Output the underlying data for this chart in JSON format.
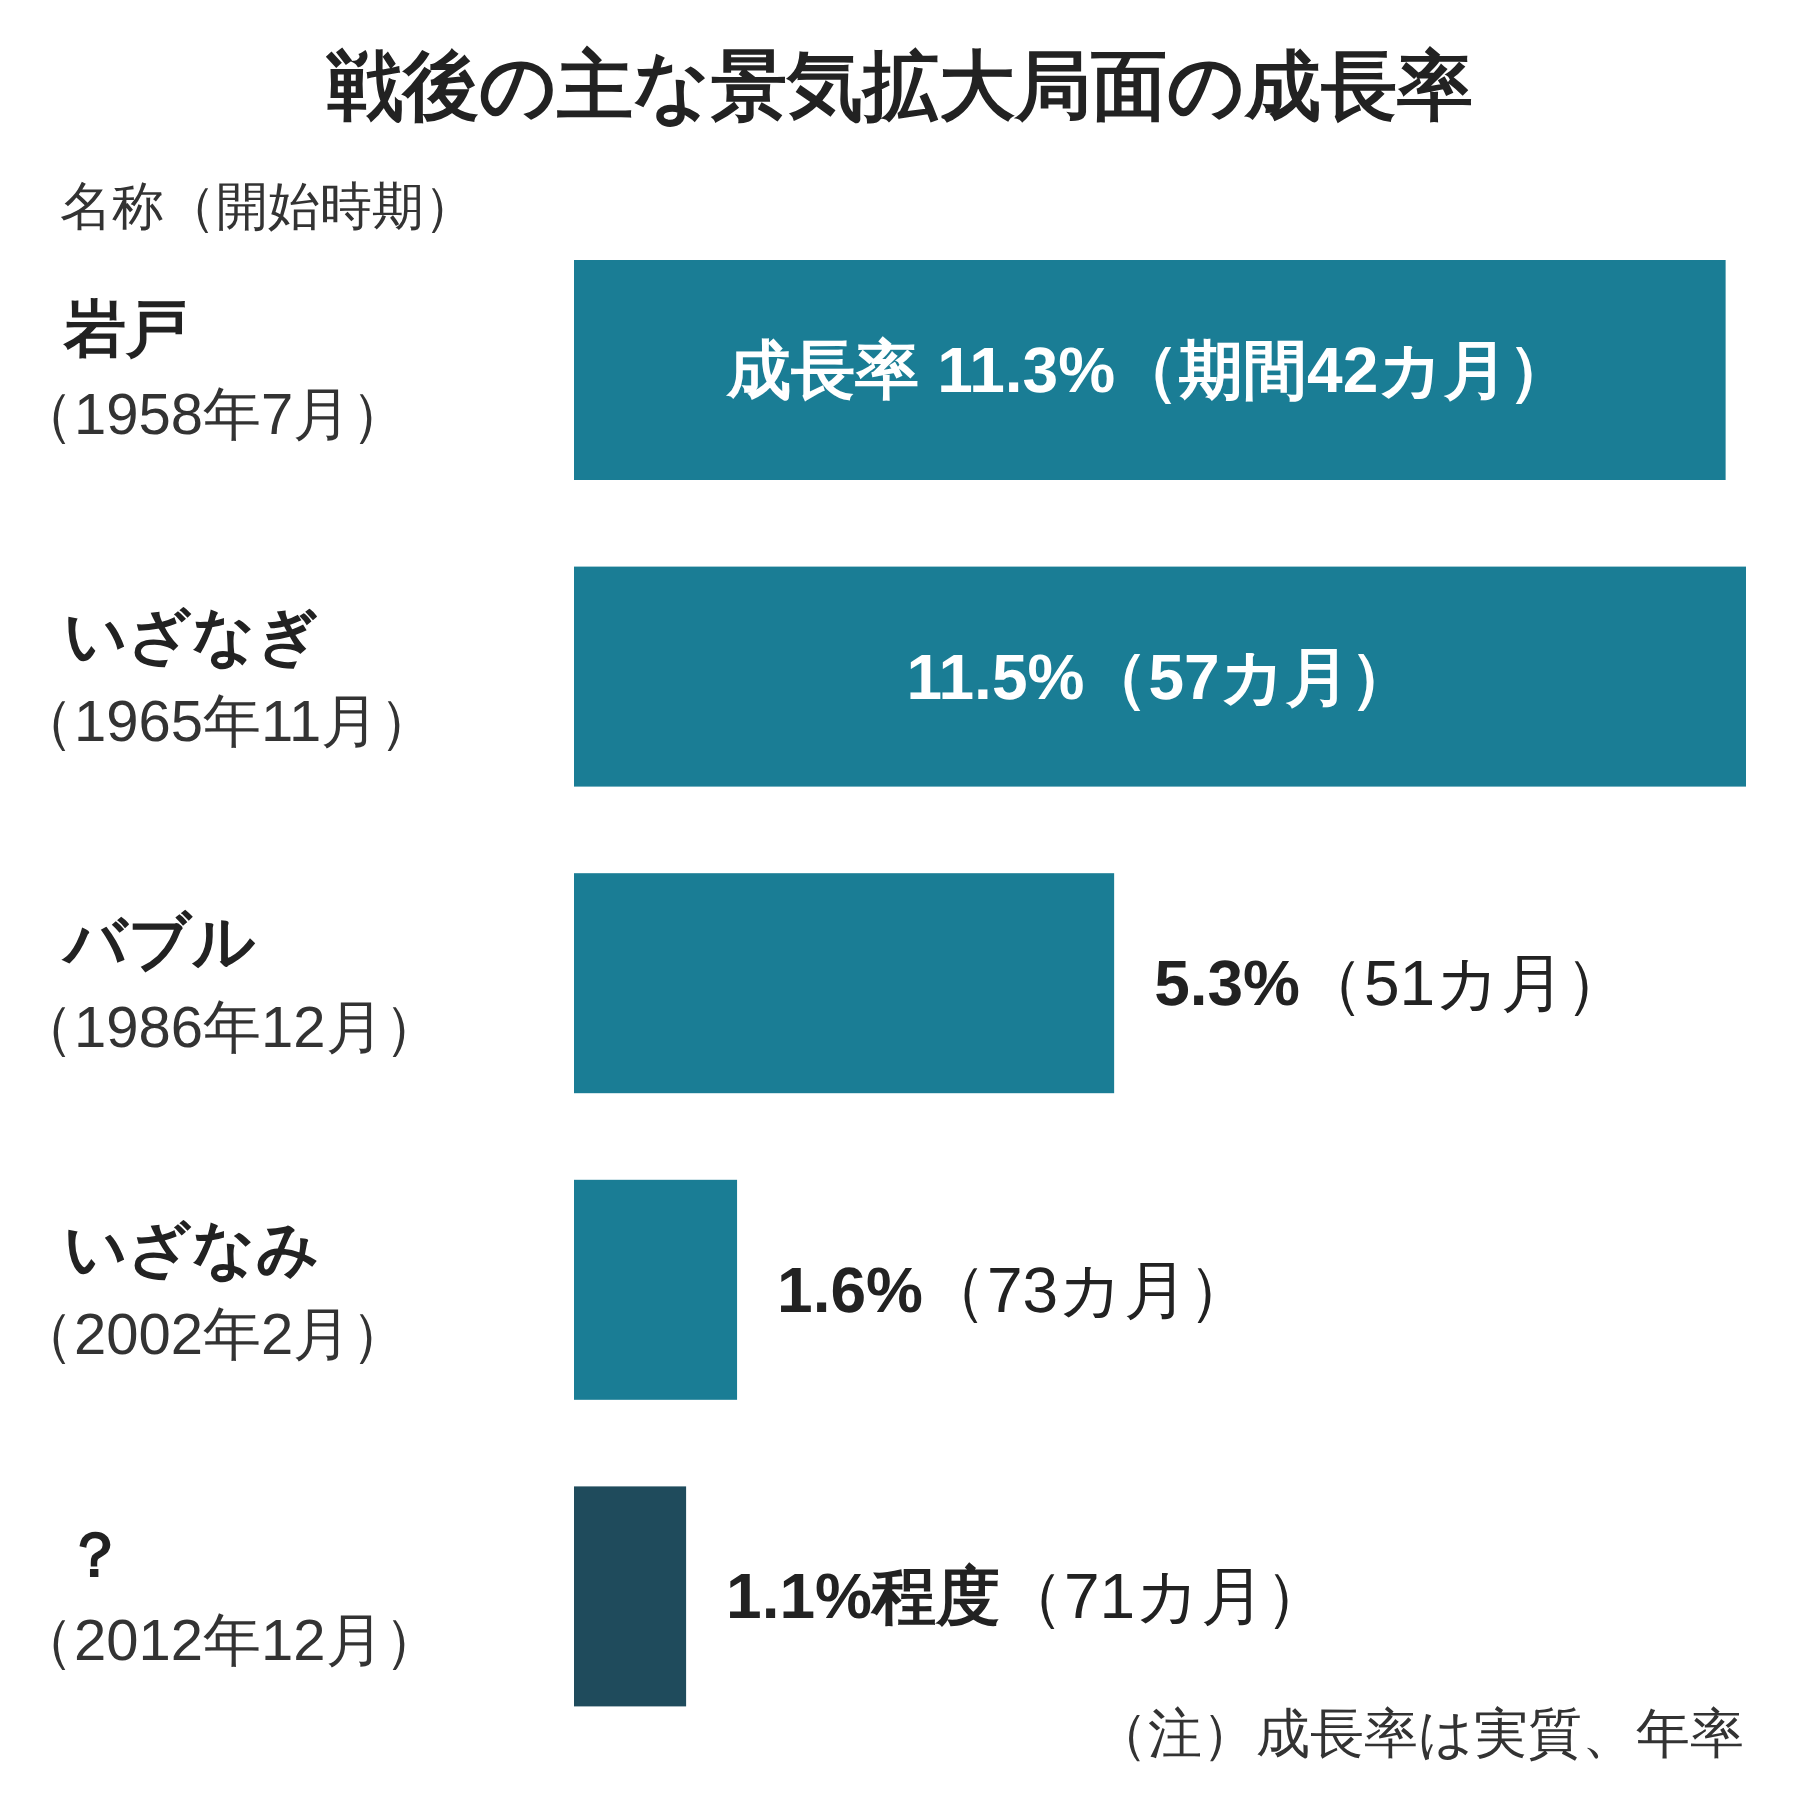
{
  "chart_data": {
    "type": "bar",
    "orientation": "horizontal",
    "title": "戦後の主な景気拡大局面の成長率",
    "ylabel": "名称（開始時期）",
    "categories": [
      "岩戸（1958年7月）",
      "いざなぎ（1965年11月）",
      "バブル（1986年12月）",
      "いざなみ（2002年2月）",
      "？（2012年12月）"
    ],
    "values": [
      11.3,
      11.5,
      5.3,
      1.6,
      1.1
    ],
    "colors": [
      "#1a7d95",
      "#1a7d95",
      "#1a7d95",
      "#1a7d95",
      "#1f4b5c"
    ],
    "value_labels": [
      "成長率 11.3%（期間42カ月）",
      "11.5%（57カ月）",
      "5.3%（51カ月）",
      "1.6%（73カ月）",
      "1.1%程度（71カ月）"
    ],
    "annotations": [
      "（注）成長率は実質、年率"
    ]
  }
}
